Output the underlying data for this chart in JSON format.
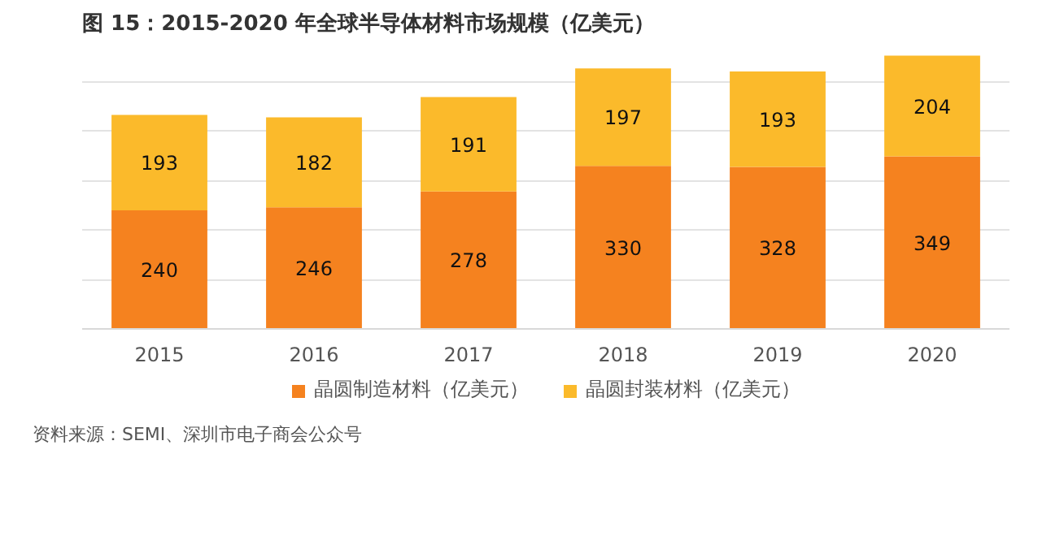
{
  "chart_data": {
    "type": "bar",
    "title": "图 15：2015-2020 年全球半导体材料市场规模（亿美元）",
    "categories": [
      "2015",
      "2016",
      "2017",
      "2018",
      "2019",
      "2020"
    ],
    "stacked": true,
    "series": [
      {
        "name": "晶圆制造材料（亿美元）",
        "color": "#f5821f",
        "values": [
          240,
          246,
          278,
          330,
          328,
          349
        ]
      },
      {
        "name": "晶圆封装材料（亿美元）",
        "color": "#fbba2b",
        "values": [
          193,
          182,
          191,
          197,
          193,
          204
        ]
      }
    ],
    "yticks": [
      {
        "value": 0,
        "label": null
      },
      {
        "value": 100,
        "label": null
      },
      {
        "value": 200,
        "label": null
      },
      {
        "value": 300,
        "label": null
      },
      {
        "value": 400,
        "label": null
      },
      {
        "value": 500,
        "label": null
      }
    ],
    "tick_labels": "x",
    "grid": "y",
    "legend": "bottom",
    "data_labels": true,
    "annotations": [
      "资料来源：SEMI、深圳市电子商会公众号"
    ]
  }
}
